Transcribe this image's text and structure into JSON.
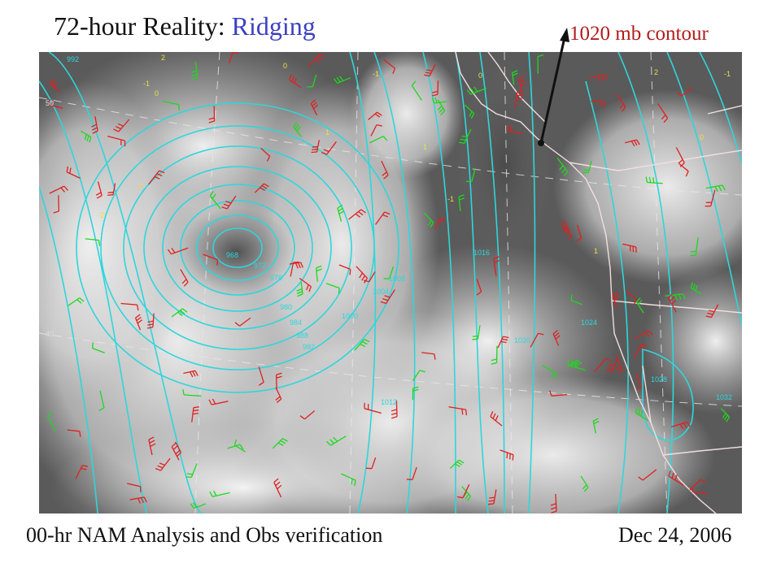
{
  "title": {
    "main": "72-hour Reality:",
    "highlight": "Ridging"
  },
  "annotation": "1020 mb contour",
  "caption": {
    "left": "00-hr NAM Analysis and Obs verification",
    "right": "Dec 24, 2006"
  },
  "map": {
    "latitude_labels": [
      "50",
      "40"
    ],
    "isobar_labels": [
      "992",
      "968",
      "972",
      "976",
      "980",
      "984",
      "988",
      "992",
      "1000",
      "1008",
      "1016",
      "1020",
      "1024",
      "1028",
      "1004",
      "1012",
      "1032"
    ],
    "wind_plot_values": [
      "2",
      "-1",
      "0",
      "-1",
      "2",
      "0",
      "1",
      "-2",
      "-1",
      "0",
      "1",
      "2",
      "-1",
      "0",
      "1"
    ],
    "colors": {
      "satellite_dark": "#5a5a5a",
      "cloud": "#e6e6e6",
      "isobar": "#2ed6dc",
      "coastline": "#f2dede",
      "barb_red": "#e02020",
      "barb_green": "#1ed81e",
      "value_text": "#e8e040",
      "grid": "#e8e8e8"
    }
  }
}
